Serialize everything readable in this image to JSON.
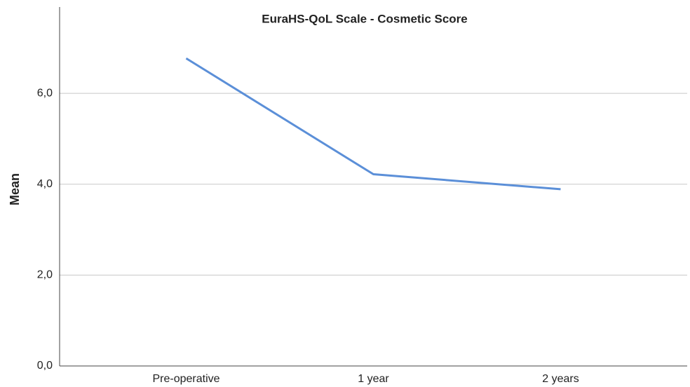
{
  "chart_data": {
    "type": "line",
    "title": "EuraHS-QoL Scale - Cosmetic Score",
    "ylabel": "Mean",
    "categories": [
      "Pre-operative",
      "1 year",
      "2 years"
    ],
    "series": [
      {
        "name": "Mean",
        "color": "#5b8fd8",
        "values": [
          6.77,
          4.22,
          3.89
        ]
      }
    ],
    "ylim": [
      0,
      7.9
    ],
    "yticks": [
      {
        "value": 0,
        "label": "0,0"
      },
      {
        "value": 2,
        "label": "2,0"
      },
      {
        "value": 4,
        "label": "4,0"
      },
      {
        "value": 6,
        "label": "6,0"
      }
    ],
    "grid": true
  }
}
